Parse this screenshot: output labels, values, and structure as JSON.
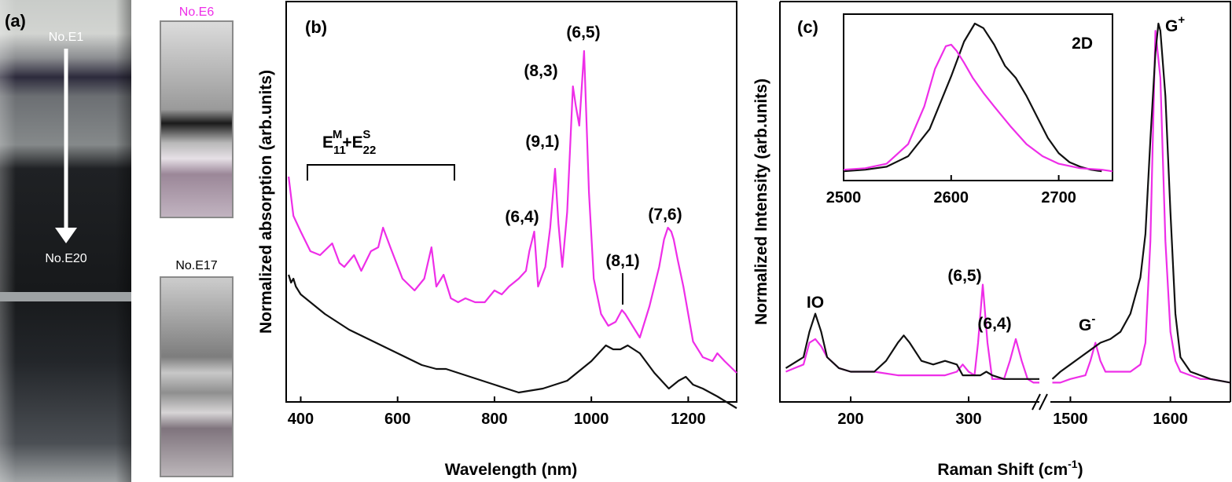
{
  "colors": {
    "magenta": "#ee2ee8",
    "black": "#111111",
    "white": "#ffffff"
  },
  "panel_a": {
    "panel_label": "(a)",
    "tube_top_label": "No.E1",
    "tube_bottom_label": "No.E20",
    "cuvette_top_label": "No.E6",
    "cuvette_bottom_label": "No.E17"
  },
  "panel_b": {
    "panel_label": "(b)",
    "bracket_main": "E",
    "bracket_sub1": "11",
    "bracket_sup1": "M",
    "bracket_plus": "+E",
    "bracket_sub2": "22",
    "bracket_sup2": "S",
    "peak_labels": [
      "(6,5)",
      "(8,3)",
      "(9,1)",
      "(6,4)",
      "(8,1)",
      "(7,6)"
    ]
  },
  "panel_c": {
    "panel_label": "(c)",
    "inset_label": "2D",
    "band_labels": [
      "IO",
      "(6,5)",
      "(6,4)"
    ],
    "g_minus_base": "G",
    "g_minus_sup": "-",
    "g_plus_base": "G",
    "g_plus_sup": "+"
  },
  "chart_data": [
    {
      "type": "line",
      "title": "(b)",
      "xlabel": "Wavelength (nm)",
      "ylabel": "Normalized absorption (arb.units)",
      "xlim": [
        370,
        1300
      ],
      "xticks": [
        400,
        600,
        800,
        1000,
        1200
      ],
      "xtick_labels": [
        "400",
        "600",
        "800",
        "1000",
        "1200"
      ],
      "ylim": [
        0,
        1
      ],
      "series": [
        {
          "name": "No.E6",
          "color": "#ee2ee8",
          "x": [
            375,
            385,
            400,
            420,
            440,
            465,
            480,
            490,
            510,
            525,
            545,
            560,
            570,
            585,
            610,
            635,
            655,
            670,
            680,
            695,
            710,
            725,
            740,
            760,
            780,
            800,
            815,
            830,
            850,
            865,
            872,
            882,
            890,
            905,
            915,
            925,
            932,
            940,
            950,
            962,
            968,
            975,
            985,
            995,
            1005,
            1020,
            1035,
            1050,
            1063,
            1070,
            1085,
            1100,
            1120,
            1140,
            1150,
            1158,
            1165,
            1170,
            1178,
            1190,
            1210,
            1230,
            1250,
            1260,
            1275,
            1300
          ],
          "y": [
            0.56,
            0.46,
            0.42,
            0.37,
            0.36,
            0.39,
            0.34,
            0.33,
            0.36,
            0.32,
            0.37,
            0.38,
            0.43,
            0.38,
            0.3,
            0.27,
            0.3,
            0.38,
            0.28,
            0.31,
            0.25,
            0.24,
            0.25,
            0.24,
            0.24,
            0.27,
            0.26,
            0.28,
            0.3,
            0.32,
            0.37,
            0.42,
            0.28,
            0.33,
            0.43,
            0.58,
            0.44,
            0.33,
            0.47,
            0.79,
            0.74,
            0.69,
            0.88,
            0.52,
            0.3,
            0.21,
            0.18,
            0.19,
            0.22,
            0.21,
            0.18,
            0.15,
            0.23,
            0.33,
            0.4,
            0.43,
            0.42,
            0.4,
            0.35,
            0.28,
            0.14,
            0.1,
            0.09,
            0.11,
            0.09,
            0.06
          ]
        },
        {
          "name": "No.E17",
          "color": "#111111",
          "x": [
            375,
            380,
            385,
            390,
            400,
            450,
            500,
            550,
            600,
            650,
            680,
            700,
            750,
            800,
            850,
            900,
            950,
            1000,
            1030,
            1045,
            1060,
            1075,
            1100,
            1130,
            1160,
            1180,
            1195,
            1210,
            1230,
            1260,
            1300
          ],
          "y": [
            0.31,
            0.29,
            0.3,
            0.28,
            0.26,
            0.21,
            0.17,
            0.14,
            0.11,
            0.08,
            0.07,
            0.07,
            0.05,
            0.03,
            0.01,
            0.02,
            0.04,
            0.09,
            0.13,
            0.12,
            0.12,
            0.13,
            0.11,
            0.06,
            0.02,
            0.04,
            0.05,
            0.03,
            0.02,
            0.0,
            -0.03
          ]
        }
      ]
    },
    {
      "type": "line",
      "title": "(c)",
      "xlabel": "Raman Shift (cm-1)",
      "ylabel": "Normalized Intensity (arb.units)",
      "axis_break": true,
      "xlim_left": [
        140,
        360
      ],
      "xlim_right": [
        1480,
        1660
      ],
      "xticks": [
        200,
        300,
        1500,
        1600
      ],
      "xtick_labels": [
        "200",
        "300",
        "1500",
        "1600"
      ],
      "ylim": [
        0,
        1
      ],
      "series": [
        {
          "name": "No.E6",
          "color": "#ee2ee8",
          "x": [
            145,
            160,
            165,
            170,
            175,
            180,
            190,
            200,
            220,
            240,
            260,
            280,
            290,
            295,
            300,
            305,
            308,
            312,
            316,
            320,
            325,
            330,
            335,
            340,
            345,
            350,
            355,
            360,
            1482,
            1490,
            1500,
            1515,
            1520,
            1525,
            1530,
            1535,
            1540,
            1550,
            1560,
            1570,
            1575,
            1580,
            1585,
            1590,
            1595,
            1600,
            1605,
            1610,
            1620,
            1630,
            1640,
            1660
          ],
          "y": [
            0.04,
            0.06,
            0.12,
            0.13,
            0.11,
            0.08,
            0.05,
            0.04,
            0.04,
            0.03,
            0.03,
            0.03,
            0.04,
            0.06,
            0.04,
            0.03,
            0.12,
            0.28,
            0.12,
            0.02,
            0.02,
            0.02,
            0.07,
            0.13,
            0.07,
            0.02,
            0.01,
            0.01,
            0.01,
            0.01,
            0.02,
            0.03,
            0.07,
            0.12,
            0.07,
            0.04,
            0.04,
            0.04,
            0.04,
            0.06,
            0.12,
            0.4,
            0.98,
            0.85,
            0.4,
            0.15,
            0.07,
            0.04,
            0.03,
            0.02,
            0.02,
            0.01
          ]
        },
        {
          "name": "No.E17",
          "color": "#111111",
          "x": [
            145,
            160,
            165,
            170,
            175,
            180,
            190,
            200,
            220,
            230,
            240,
            245,
            250,
            260,
            270,
            280,
            290,
            295,
            300,
            310,
            315,
            320,
            330,
            340,
            350,
            360,
            1482,
            1490,
            1500,
            1510,
            1520,
            1530,
            1540,
            1550,
            1560,
            1570,
            1575,
            1580,
            1585,
            1588,
            1590,
            1595,
            1600,
            1605,
            1610,
            1620,
            1640,
            1660
          ],
          "y": [
            0.05,
            0.08,
            0.15,
            0.2,
            0.15,
            0.08,
            0.05,
            0.04,
            0.04,
            0.07,
            0.12,
            0.14,
            0.12,
            0.07,
            0.06,
            0.07,
            0.06,
            0.03,
            0.03,
            0.03,
            0.04,
            0.03,
            0.02,
            0.02,
            0.02,
            0.02,
            0.02,
            0.04,
            0.06,
            0.08,
            0.1,
            0.12,
            0.13,
            0.15,
            0.2,
            0.3,
            0.42,
            0.68,
            0.92,
            1.0,
            0.98,
            0.8,
            0.48,
            0.2,
            0.08,
            0.04,
            0.02,
            0.01
          ]
        }
      ]
    },
    {
      "type": "line",
      "title": "2D",
      "inset": true,
      "xlim": [
        2500,
        2750
      ],
      "xticks": [
        2500,
        2600,
        2700
      ],
      "xtick_labels": [
        "2500",
        "2600",
        "2700"
      ],
      "ylim": [
        0,
        1
      ],
      "series": [
        {
          "name": "No.E17",
          "color": "#111111",
          "x": [
            2500,
            2520,
            2540,
            2560,
            2580,
            2600,
            2612,
            2622,
            2630,
            2640,
            2650,
            2660,
            2670,
            2680,
            2690,
            2700,
            2710,
            2720,
            2730,
            2740
          ],
          "y": [
            0.02,
            0.03,
            0.05,
            0.12,
            0.3,
            0.65,
            0.88,
            1.0,
            0.97,
            0.86,
            0.72,
            0.64,
            0.52,
            0.38,
            0.24,
            0.14,
            0.08,
            0.05,
            0.03,
            0.02
          ]
        },
        {
          "name": "No.E6",
          "color": "#ee2ee8",
          "x": [
            2500,
            2520,
            2540,
            2560,
            2575,
            2585,
            2595,
            2600,
            2605,
            2612,
            2620,
            2630,
            2640,
            2655,
            2670,
            2685,
            2700,
            2720,
            2740,
            2750
          ],
          "y": [
            0.03,
            0.04,
            0.07,
            0.2,
            0.45,
            0.7,
            0.85,
            0.86,
            0.82,
            0.74,
            0.64,
            0.54,
            0.45,
            0.32,
            0.2,
            0.12,
            0.07,
            0.04,
            0.03,
            0.02
          ]
        }
      ]
    }
  ]
}
